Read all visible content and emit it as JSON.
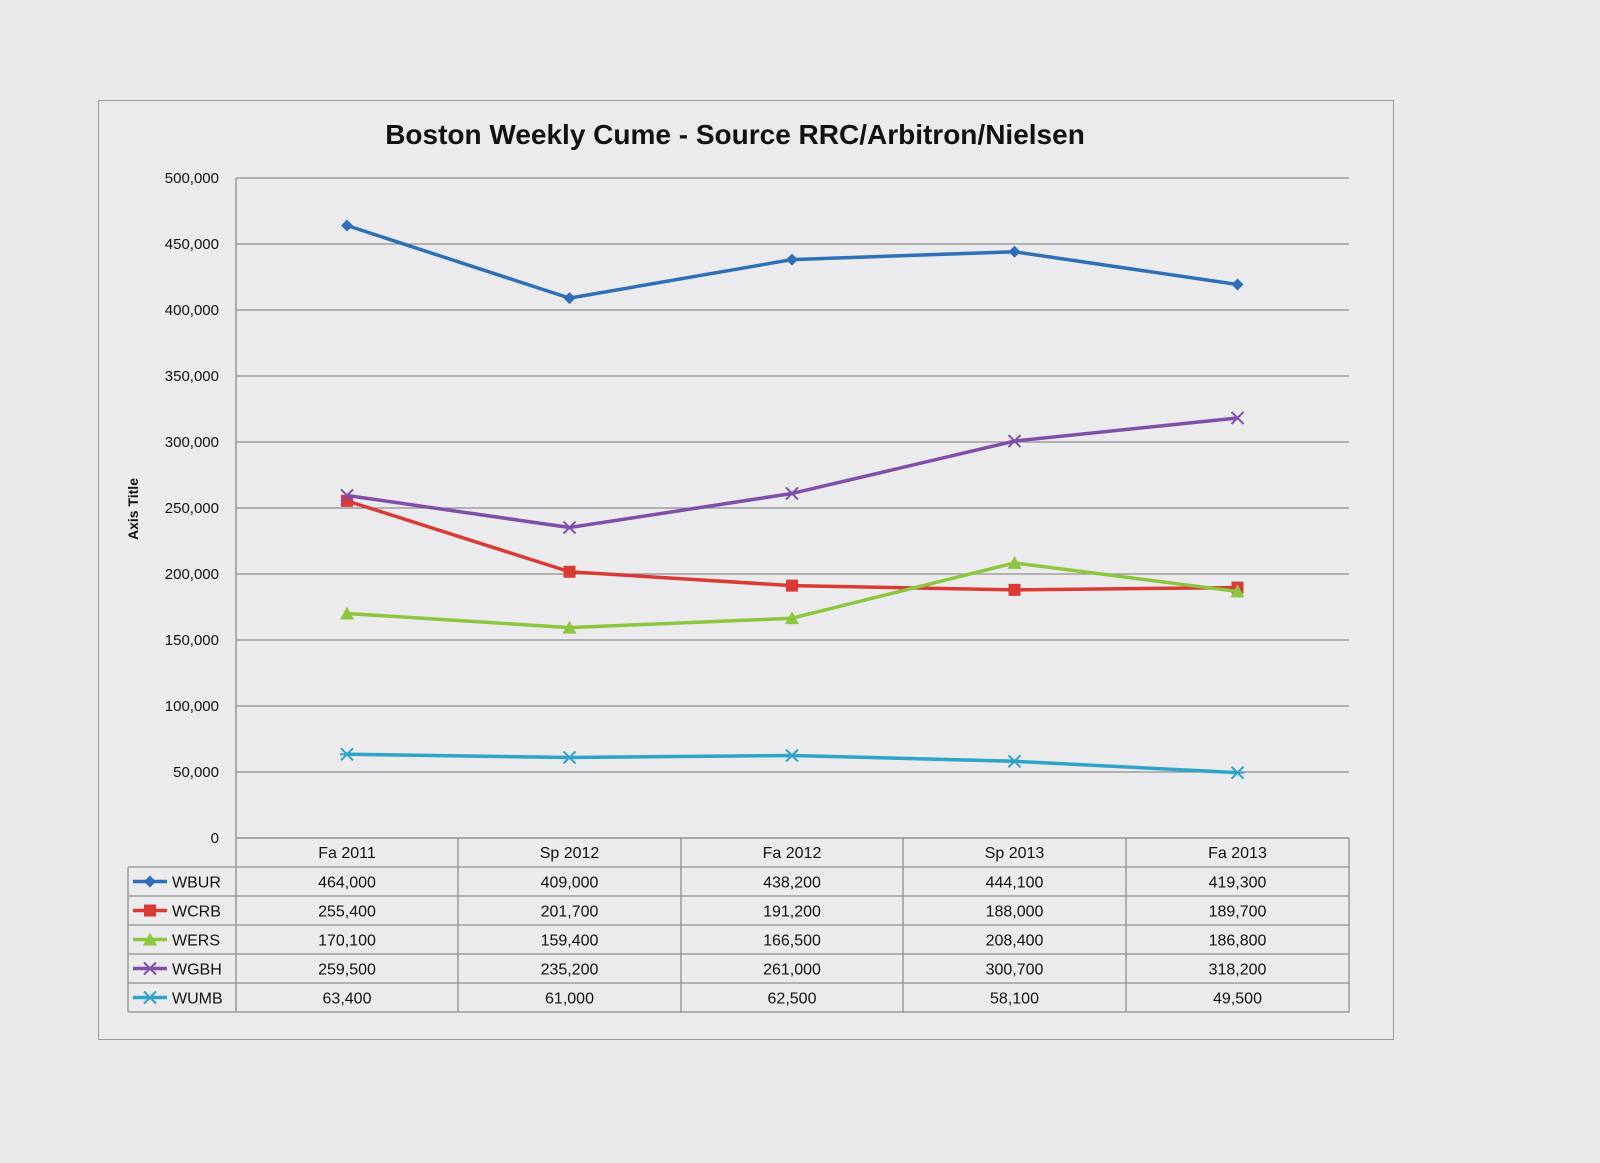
{
  "chart_data": {
    "type": "line",
    "title": "Boston Weekly Cume -  Source RRC/Arbitron/Nielsen",
    "xlabel": "",
    "ylabel": "Axis Title",
    "categories": [
      "Fa 2011",
      "Sp 2012",
      "Fa 2012",
      "Sp 2013",
      "Fa 2013"
    ],
    "ylim": [
      0,
      500000
    ],
    "yticks": [
      0,
      50000,
      100000,
      150000,
      200000,
      250000,
      300000,
      350000,
      400000,
      450000,
      500000
    ],
    "ytick_labels": [
      "0",
      "50,000",
      "100,000",
      "150,000",
      "200,000",
      "250,000",
      "300,000",
      "350,000",
      "400,000",
      "450,000",
      "500,000"
    ],
    "grid": true,
    "legend": "data-table-below",
    "series": [
      {
        "name": "WBUR",
        "color": "#2e6fb7",
        "marker": "diamond",
        "values": [
          464000,
          409000,
          438200,
          444100,
          419300
        ],
        "labels": [
          "464,000",
          "409,000",
          "438,200",
          "444,100",
          "419,300"
        ]
      },
      {
        "name": "WCRB",
        "color": "#d93a34",
        "marker": "square",
        "values": [
          255400,
          201700,
          191200,
          188000,
          189700
        ],
        "labels": [
          "255,400",
          "201,700",
          "191,200",
          "188,000",
          "189,700"
        ]
      },
      {
        "name": "WERS",
        "color": "#8cc63f",
        "marker": "triangle",
        "values": [
          170100,
          159400,
          166500,
          208400,
          186800
        ],
        "labels": [
          "170,100",
          "159,400",
          "166,500",
          "208,400",
          "186,800"
        ]
      },
      {
        "name": "WGBH",
        "color": "#7e4ea8",
        "marker": "x",
        "values": [
          259500,
          235200,
          261000,
          300700,
          318200
        ],
        "labels": [
          "259,500",
          "235,200",
          "261,000",
          "300,700",
          "318,200"
        ]
      },
      {
        "name": "WUMB",
        "color": "#2fa3c8",
        "marker": "asterisk",
        "values": [
          63400,
          61000,
          62500,
          58100,
          49500
        ],
        "labels": [
          "63,400",
          "61,000",
          "62,500",
          "58,100",
          "49,500"
        ]
      }
    ]
  }
}
